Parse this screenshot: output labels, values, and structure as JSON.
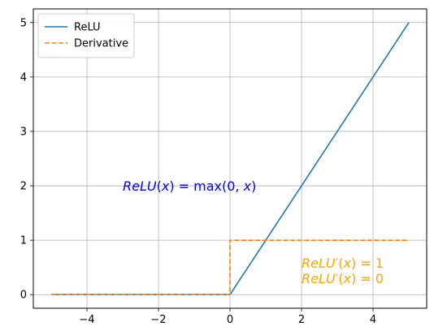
{
  "chart_data": {
    "type": "line",
    "title": "",
    "xlabel": "",
    "ylabel": "",
    "xlim": [
      -5.5,
      5.5
    ],
    "ylim": [
      -0.25,
      5.25
    ],
    "xticks": [
      -4,
      -2,
      0,
      2,
      4
    ],
    "yticks": [
      0,
      1,
      2,
      3,
      4,
      5
    ],
    "grid": true,
    "legend_position": "top-left",
    "series": [
      {
        "name": "ReLU",
        "style": "solid",
        "color": "#1f77b4",
        "x": [
          -5,
          0,
          5
        ],
        "y": [
          0,
          0,
          5
        ]
      },
      {
        "name": "Derivative",
        "style": "dashed",
        "color": "#ff7f0e",
        "x": [
          -5,
          0,
          0,
          5
        ],
        "y": [
          0,
          0,
          1,
          1
        ]
      }
    ],
    "annotations": [
      {
        "id": "relu-formula",
        "color": "#0000ff",
        "x": -3.0,
        "y": 2.0,
        "lines": [
          [
            {
              "t": "ReLU",
              "it": true
            },
            {
              "t": "(",
              "it": false
            },
            {
              "t": "x",
              "it": true
            },
            {
              "t": ") = max(0, ",
              "it": false
            },
            {
              "t": "x",
              "it": true
            },
            {
              "t": ")",
              "it": false
            }
          ]
        ]
      },
      {
        "id": "derivative-formula",
        "color": "#ffa500",
        "x": 2.0,
        "y": 0.3,
        "lines": [
          [
            {
              "t": "ReLU′",
              "it": true
            },
            {
              "t": "(",
              "it": false
            },
            {
              "t": "x",
              "it": true
            },
            {
              "t": ") = 1",
              "it": false
            }
          ],
          [
            {
              "t": "ReLU′",
              "it": true
            },
            {
              "t": "(",
              "it": false
            },
            {
              "t": "x",
              "it": true
            },
            {
              "t": ") = 0",
              "it": false
            }
          ]
        ]
      }
    ]
  }
}
